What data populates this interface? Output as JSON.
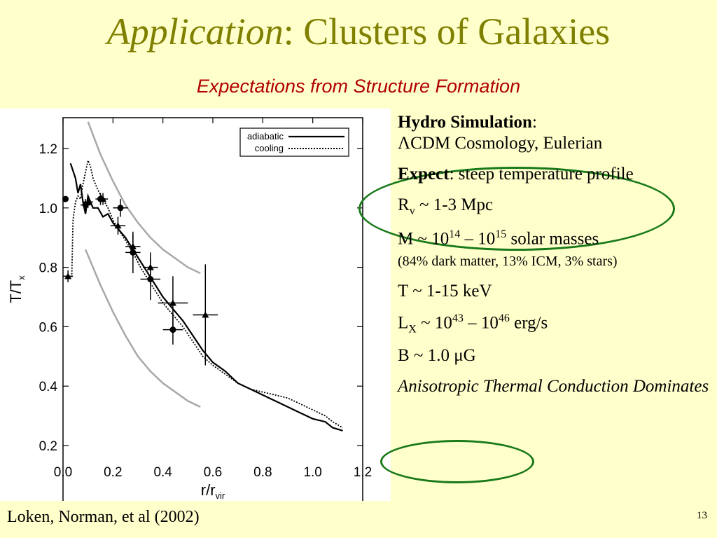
{
  "slide": {
    "title_italic": "Application",
    "title_rest": ": Clusters of Galaxies",
    "subtitle": "Expectations from Structure Formation",
    "citation": "Loken, Norman, et al (2002)",
    "page_number": "13"
  },
  "bullets": {
    "hydro_label": "Hydro Simulation",
    "hydro_colon": ":",
    "cosmology": "ΛCDM Cosmology, Eulerian",
    "expect_label": "Expect",
    "expect_text": ": steep temperature profile",
    "rv_symbol": "R",
    "rv_sub": "v",
    "rv_text": " ~ 1-3 Mpc",
    "mass_prefix": "M ~ 10",
    "mass_exp1": "14",
    "mass_mid": " – 10",
    "mass_exp2": "15",
    "mass_suffix": " solar masses",
    "mass_note": "(84% dark matter, 13% ICM, 3% stars)",
    "temperature": "T ~ 1-15 keV",
    "lx_symbol": "L",
    "lx_sub": "X",
    "lx_prefix": " ~ 10",
    "lx_exp1": "43",
    "lx_mid": " – 10",
    "lx_exp2": "46",
    "lx_suffix": " erg/s",
    "bfield": "B ~ 1.0 μG",
    "conclusion": "Anisotropic Thermal Conduction Dominates"
  },
  "chart_data": {
    "type": "line",
    "xlabel": "r/r_vir",
    "ylabel": "T/T_x",
    "xlim": [
      0.0,
      1.2
    ],
    "ylim": [
      0.2,
      1.3
    ],
    "xticks": [
      "0.0",
      "0.2",
      "0.4",
      "0.6",
      "0.8",
      "1.0",
      "1.2"
    ],
    "yticks": [
      "0.2",
      "0.4",
      "0.6",
      "0.8",
      "1.0",
      "1.2"
    ],
    "legend_position": "top-right",
    "series": [
      {
        "name": "adiabatic",
        "style": "solid",
        "x": [
          0.03,
          0.05,
          0.06,
          0.07,
          0.08,
          0.09,
          0.1,
          0.12,
          0.14,
          0.16,
          0.18,
          0.2,
          0.22,
          0.25,
          0.28,
          0.31,
          0.34,
          0.37,
          0.4,
          0.44,
          0.48,
          0.52,
          0.56,
          0.6,
          0.65,
          0.7,
          0.75,
          0.8,
          0.85,
          0.9,
          0.95,
          1.0,
          1.05,
          1.08,
          1.12
        ],
        "y": [
          1.15,
          1.1,
          1.05,
          1.08,
          1.02,
          0.98,
          1.04,
          1.0,
          1.0,
          0.97,
          0.98,
          0.95,
          0.93,
          0.9,
          0.86,
          0.82,
          0.78,
          0.74,
          0.7,
          0.66,
          0.62,
          0.57,
          0.52,
          0.48,
          0.45,
          0.41,
          0.39,
          0.37,
          0.35,
          0.33,
          0.31,
          0.29,
          0.28,
          0.26,
          0.25
        ]
      },
      {
        "name": "cooling",
        "style": "dotted",
        "x": [
          0.02,
          0.035,
          0.04,
          0.05,
          0.06,
          0.07,
          0.08,
          0.09,
          0.1,
          0.11,
          0.12,
          0.14,
          0.16,
          0.18,
          0.2,
          0.22,
          0.25,
          0.28,
          0.31,
          0.34,
          0.37,
          0.4,
          0.44,
          0.48,
          0.52,
          0.56,
          0.6,
          0.65,
          0.7,
          0.75,
          0.8,
          0.85,
          0.9,
          0.95,
          1.0,
          1.05,
          1.08,
          1.12
        ],
        "y": [
          0.77,
          0.77,
          0.96,
          1.02,
          1.04,
          1.03,
          1.08,
          1.12,
          1.16,
          1.14,
          1.1,
          1.06,
          1.03,
          1.0,
          0.96,
          0.93,
          0.89,
          0.85,
          0.8,
          0.76,
          0.72,
          0.68,
          0.64,
          0.6,
          0.55,
          0.5,
          0.47,
          0.44,
          0.41,
          0.39,
          0.38,
          0.37,
          0.36,
          0.34,
          0.32,
          0.3,
          0.28,
          0.26
        ]
      }
    ],
    "bounds": [
      {
        "x": [
          0.1,
          0.15,
          0.2,
          0.25,
          0.3,
          0.35,
          0.4,
          0.45,
          0.5,
          0.55
        ],
        "y": [
          1.29,
          1.18,
          1.09,
          1.01,
          0.95,
          0.9,
          0.86,
          0.83,
          0.8,
          0.78
        ]
      },
      {
        "x": [
          0.09,
          0.12,
          0.15,
          0.2,
          0.25,
          0.3,
          0.35,
          0.4,
          0.45,
          0.5,
          0.55
        ],
        "y": [
          0.86,
          0.8,
          0.74,
          0.65,
          0.57,
          0.5,
          0.45,
          0.41,
          0.38,
          0.35,
          0.33
        ]
      }
    ],
    "observations_triangles": [
      {
        "x": 0.02,
        "y": 0.77,
        "xerr": 0.02,
        "yerr": 0.02
      },
      {
        "x": 0.1,
        "y": 1.02,
        "xerr": 0.02,
        "yerr": 0.02
      },
      {
        "x": 0.16,
        "y": 1.03,
        "xerr": 0.02,
        "yerr": 0.02
      },
      {
        "x": 0.22,
        "y": 0.94,
        "xerr": 0.03,
        "yerr": 0.03
      },
      {
        "x": 0.28,
        "y": 0.87,
        "xerr": 0.03,
        "yerr": 0.04
      },
      {
        "x": 0.35,
        "y": 0.8,
        "xerr": 0.03,
        "yerr": 0.05
      },
      {
        "x": 0.44,
        "y": 0.68,
        "xerr": 0.06,
        "yerr": 0.09
      },
      {
        "x": 0.57,
        "y": 0.64,
        "xerr": 0.05,
        "yerr": 0.17
      }
    ],
    "observations_circles": [
      {
        "x": 0.01,
        "y": 1.03,
        "xerr": 0.01,
        "yerr": 0.01
      },
      {
        "x": 0.09,
        "y": 1.01,
        "xerr": 0.02,
        "yerr": 0.02
      },
      {
        "x": 0.15,
        "y": 1.03,
        "xerr": 0.02,
        "yerr": 0.02
      },
      {
        "x": 0.23,
        "y": 1.0,
        "xerr": 0.03,
        "yerr": 0.03
      },
      {
        "x": 0.28,
        "y": 0.85,
        "xerr": 0.03,
        "yerr": 0.07
      },
      {
        "x": 0.35,
        "y": 0.76,
        "xerr": 0.04,
        "yerr": 0.07
      },
      {
        "x": 0.44,
        "y": 0.59,
        "xerr": 0.04,
        "yerr": 0.05
      }
    ]
  },
  "colors": {
    "title": "#808000",
    "subtitle": "#b00000",
    "ellipse": "#1a7a1a",
    "background": "#ffffcc"
  }
}
